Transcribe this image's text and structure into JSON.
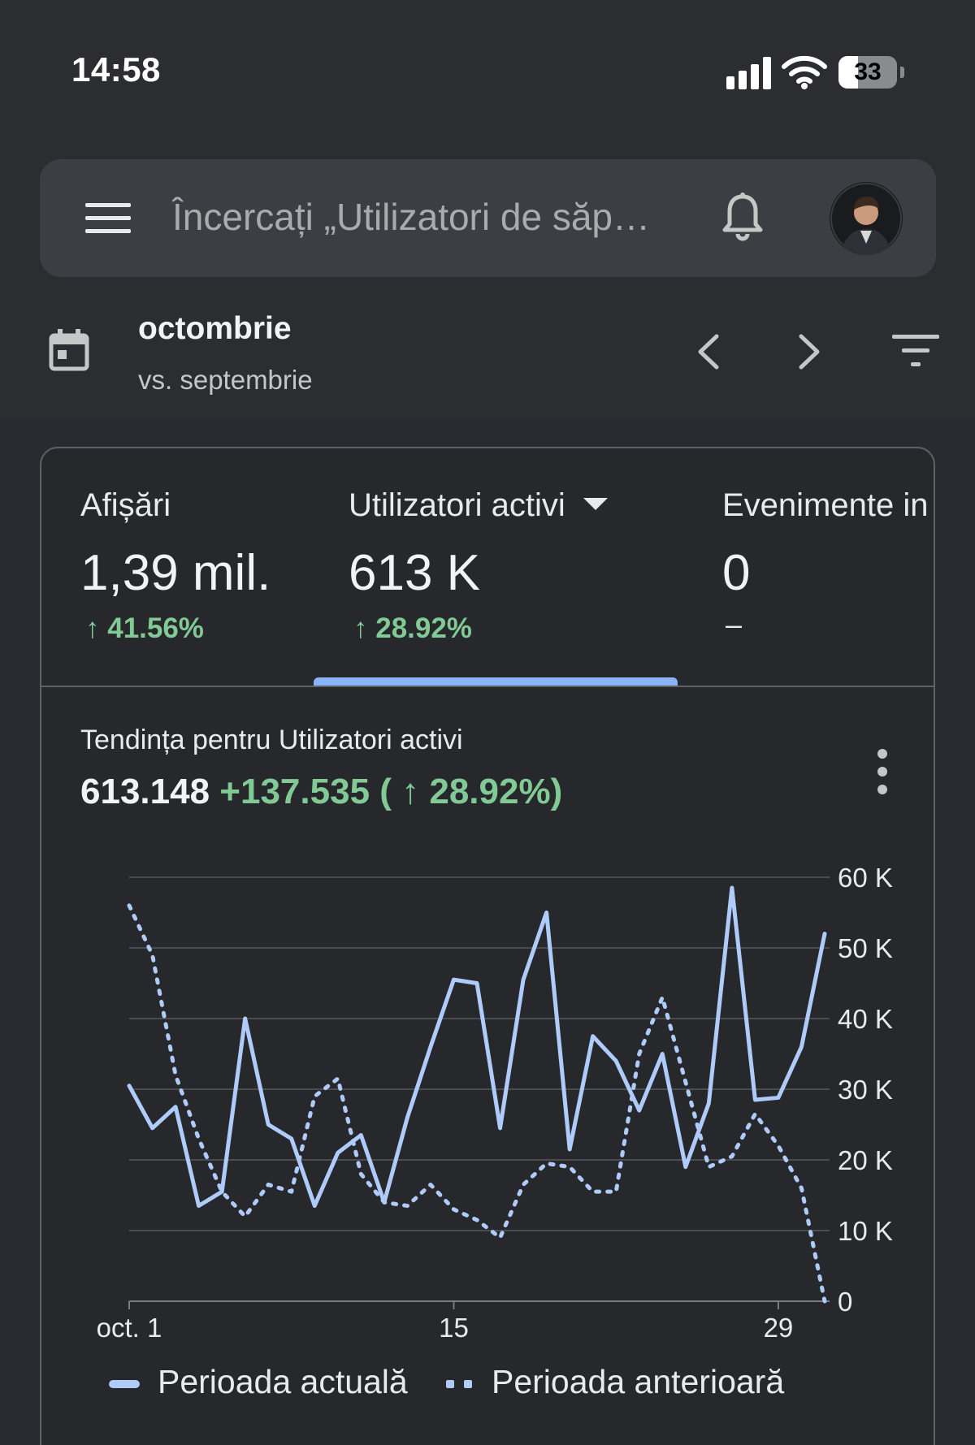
{
  "status_bar": {
    "time": "14:58",
    "battery": "33",
    "battery_percent": 33
  },
  "search": {
    "placeholder": "Încercați „Utilizatori de săp…"
  },
  "date": {
    "title": "octombrie",
    "comparison": "vs. septembrie"
  },
  "metrics": [
    {
      "label": "Afișări",
      "value": "1,39 mil.",
      "change": "↑ 41.56%"
    },
    {
      "label": "Utilizatori activi",
      "value": "613 K",
      "change": "↑ 28.92%",
      "selected": true
    },
    {
      "label": "Evenimente in",
      "value": "0",
      "change": "–"
    }
  ],
  "trend": {
    "title": "Tendința pentru Utilizatori activi",
    "total": "613.148",
    "delta": "+137.535 ( ↑ 28.92%)"
  },
  "colors": {
    "current": "#aecbfa",
    "previous": "#aecbfa",
    "positive": "#81c995",
    "accent": "#8ab4f8"
  },
  "chart_data": {
    "type": "line",
    "x": [
      1,
      2,
      3,
      4,
      5,
      6,
      7,
      8,
      9,
      10,
      11,
      12,
      13,
      14,
      15,
      16,
      17,
      18,
      19,
      20,
      21,
      22,
      23,
      24,
      25,
      26,
      27,
      28,
      29,
      30,
      31
    ],
    "x_ticks": [
      {
        "value": 1,
        "label": "oct. 1"
      },
      {
        "value": 15,
        "label": "15"
      },
      {
        "value": 29,
        "label": "29"
      }
    ],
    "y_ticks": [
      {
        "value": 0,
        "label": "0"
      },
      {
        "value": 10000,
        "label": "10 K"
      },
      {
        "value": 20000,
        "label": "20 K"
      },
      {
        "value": 30000,
        "label": "30 K"
      },
      {
        "value": 40000,
        "label": "40 K"
      },
      {
        "value": 50000,
        "label": "50 K"
      },
      {
        "value": 60000,
        "label": "60 K"
      }
    ],
    "ylim": [
      0,
      60000
    ],
    "grid": true,
    "legend_position": "bottom",
    "series": [
      {
        "name": "Perioada actuală",
        "style": "solid",
        "values": [
          30500,
          24500,
          27500,
          13500,
          15500,
          40000,
          25000,
          23000,
          13500,
          21000,
          23500,
          14000,
          26000,
          36000,
          45500,
          45000,
          24500,
          45500,
          55000,
          21500,
          37500,
          34000,
          27000,
          35000,
          19000,
          28000,
          58500,
          28500,
          28800,
          36000,
          52000
        ]
      },
      {
        "name": "Perioada anterioară",
        "style": "dotted",
        "values": [
          56000,
          49000,
          32000,
          23000,
          15500,
          12000,
          16500,
          15500,
          29000,
          31500,
          18000,
          14000,
          13500,
          16500,
          13000,
          11500,
          9000,
          16500,
          19500,
          19000,
          15500,
          15500,
          35000,
          43000,
          31000,
          19000,
          20500,
          26500,
          22000,
          16000,
          0
        ]
      }
    ]
  }
}
